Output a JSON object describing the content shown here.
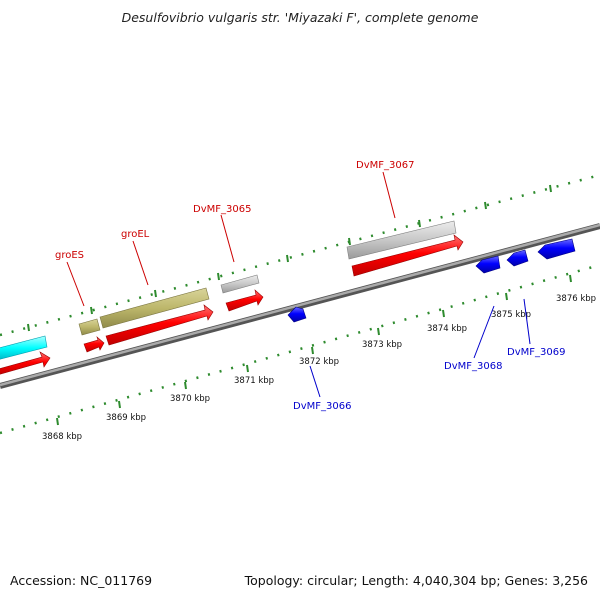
{
  "title": "Desulfovibrio vulgaris str. 'Miyazaki F', complete genome",
  "footer": {
    "accession": "Accession: NC_011769",
    "summary": "Topology: circular; Length: 4,040,304 bp; Genes: 3,256"
  },
  "colors": {
    "backbone": "#888888",
    "forward_cds": "#ff0000",
    "reverse_cds": "#0000ff",
    "forward_label": "#cc0000",
    "reverse_label": "#0000cc",
    "tick_marks": "#2e8b2e",
    "cyan_feature": "#00ffff",
    "khaki_feature": "#bdb76b",
    "grey_feature": "#c8c8c8"
  },
  "scale_ticks": [
    "3868 kbp",
    "3869 kbp",
    "3870 kbp",
    "3871 kbp",
    "3872 kbp",
    "3873 kbp",
    "3874 kbp",
    "3875 kbp",
    "3876 kbp"
  ],
  "gene_labels": {
    "groES": "groES",
    "groEL": "groEL",
    "DvMF_3065": "DvMF_3065",
    "DvMF_3066": "DvMF_3066",
    "DvMF_3067": "DvMF_3067",
    "DvMF_3068": "DvMF_3068",
    "DvMF_3069": "DvMF_3069"
  }
}
